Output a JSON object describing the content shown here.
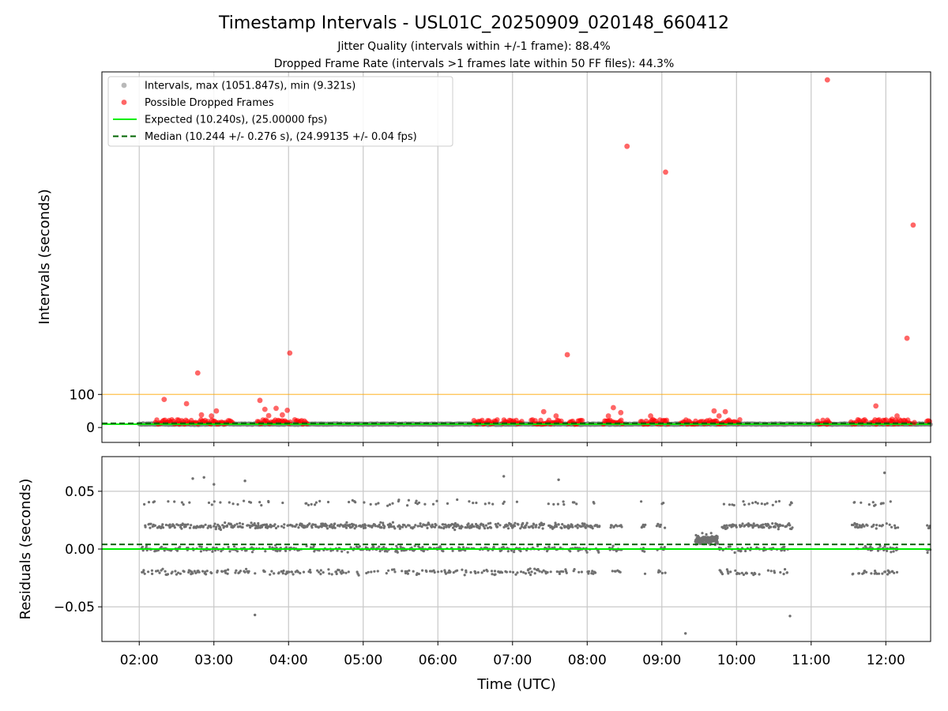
{
  "figure": {
    "title": "Timestamp Intervals - USL01C_20250909_020148_660412",
    "subtitle_1": "Jitter Quality (intervals within +/-1 frame): 88.4%",
    "subtitle_2": "Dropped Frame Rate (intervals >1 frames late within 50 FF files): 44.3%"
  },
  "colors": {
    "intervals": "#808080",
    "dropped": "#ff0000",
    "expected": "#00ee00",
    "median": "#006400",
    "threshold": "#ffa500",
    "grid": "#c8c8c8",
    "residual_points": "#707070"
  },
  "chart_data": [
    {
      "type": "scatter",
      "panel": "top",
      "ylabel": "Intervals (seconds)",
      "xlim": [
        "01:30",
        "12:36"
      ],
      "ylim": [
        -45,
        1075
      ],
      "yticks": [
        0,
        100
      ],
      "grid": "vertical",
      "legend_placement": "top-left",
      "legend": [
        {
          "marker": "dot-gray",
          "label": "Intervals, max (1051.847s), min (9.321s)"
        },
        {
          "marker": "dot-red",
          "label": "Possible Dropped Frames"
        },
        {
          "marker": "line-solid-green",
          "label": "Expected (10.240s), (25.00000 fps)"
        },
        {
          "marker": "line-dashed-darkgreen",
          "label": "Median (10.244 +/- 0.276 s), (24.99135 +/- 0.04 fps)"
        }
      ],
      "expected_interval": 10.24,
      "median_interval": 10.244,
      "threshold_line": 100,
      "interval_segments": [
        [
          "02:00",
          "12:36"
        ]
      ],
      "dropped_frames": [
        {
          "x": "02:20",
          "y": 85
        },
        {
          "x": "02:38",
          "y": 72
        },
        {
          "x": "02:47",
          "y": 165
        },
        {
          "x": "02:58",
          "y": 35
        },
        {
          "x": "03:02",
          "y": 50
        },
        {
          "x": "02:50",
          "y": 38
        },
        {
          "x": "03:37",
          "y": 82
        },
        {
          "x": "03:41",
          "y": 55
        },
        {
          "x": "03:44",
          "y": 36
        },
        {
          "x": "03:50",
          "y": 58
        },
        {
          "x": "03:55",
          "y": 38
        },
        {
          "x": "03:59",
          "y": 52
        },
        {
          "x": "04:01",
          "y": 225
        },
        {
          "x": "07:25",
          "y": 48
        },
        {
          "x": "07:35",
          "y": 35
        },
        {
          "x": "07:44",
          "y": 220
        },
        {
          "x": "08:21",
          "y": 60
        },
        {
          "x": "08:17",
          "y": 35
        },
        {
          "x": "08:27",
          "y": 45
        },
        {
          "x": "08:32",
          "y": 850
        },
        {
          "x": "08:51",
          "y": 35
        },
        {
          "x": "09:03",
          "y": 772
        },
        {
          "x": "09:42",
          "y": 50
        },
        {
          "x": "09:46",
          "y": 35
        },
        {
          "x": "09:51",
          "y": 48
        },
        {
          "x": "11:13",
          "y": 1051
        },
        {
          "x": "11:13",
          "y": 22
        },
        {
          "x": "11:52",
          "y": 65
        },
        {
          "x": "12:05",
          "y": 25
        },
        {
          "x": "12:09",
          "y": 35
        },
        {
          "x": "12:17",
          "y": 270
        },
        {
          "x": "12:22",
          "y": 612
        },
        {
          "x": "12:23",
          "y": 15
        }
      ],
      "dropped_clusters": [
        [
          "02:13",
          "02:32"
        ],
        [
          "02:32",
          "03:15"
        ],
        [
          "03:35",
          "04:02"
        ],
        [
          "04:05",
          "04:15"
        ],
        [
          "06:29",
          "06:48"
        ],
        [
          "06:52",
          "07:08"
        ],
        [
          "07:15",
          "07:40"
        ],
        [
          "07:45",
          "07:57"
        ],
        [
          "08:13",
          "08:29"
        ],
        [
          "08:43",
          "09:06"
        ],
        [
          "09:15",
          "09:32"
        ],
        [
          "09:33",
          "10:03"
        ],
        [
          "11:05",
          "11:16"
        ],
        [
          "11:32",
          "11:45"
        ],
        [
          "11:48",
          "12:20"
        ],
        [
          "12:33",
          "12:36"
        ]
      ]
    },
    {
      "type": "scatter",
      "panel": "bottom",
      "xlabel": "Time (UTC)",
      "ylabel": "Residuals (seconds)",
      "xlim": [
        "01:30",
        "12:36"
      ],
      "ylim": [
        -0.08,
        0.08
      ],
      "xticks": [
        "02:00",
        "03:00",
        "04:00",
        "05:00",
        "06:00",
        "07:00",
        "08:00",
        "09:00",
        "10:00",
        "11:00",
        "12:00"
      ],
      "yticks": [
        0.05,
        0.0,
        -0.05
      ],
      "ytick_labels": [
        "0.05",
        "0.00",
        "−0.05"
      ],
      "grid": "both",
      "expected_residual": 0.0,
      "median_residual": 0.004,
      "bands": [
        -0.02,
        0.0,
        0.02,
        0.04
      ],
      "data_segments": [
        [
          "02:02",
          "08:10"
        ],
        [
          "08:18",
          "08:28"
        ],
        [
          "08:43",
          "08:47"
        ],
        [
          "08:56",
          "09:03"
        ],
        [
          "09:27",
          "09:45"
        ],
        [
          "09:46",
          "10:45"
        ],
        [
          "11:33",
          "12:10"
        ],
        [
          "12:33",
          "12:36"
        ]
      ],
      "dense_segment": [
        "09:27",
        "09:45"
      ],
      "outliers": [
        {
          "x": "02:43",
          "y": 0.061
        },
        {
          "x": "02:52",
          "y": 0.062
        },
        {
          "x": "03:00",
          "y": 0.056
        },
        {
          "x": "03:25",
          "y": 0.059
        },
        {
          "x": "03:33",
          "y": -0.057
        },
        {
          "x": "06:53",
          "y": 0.063
        },
        {
          "x": "07:37",
          "y": 0.06
        },
        {
          "x": "09:19",
          "y": -0.073
        },
        {
          "x": "10:43",
          "y": -0.058
        },
        {
          "x": "11:59",
          "y": 0.066
        }
      ]
    }
  ]
}
